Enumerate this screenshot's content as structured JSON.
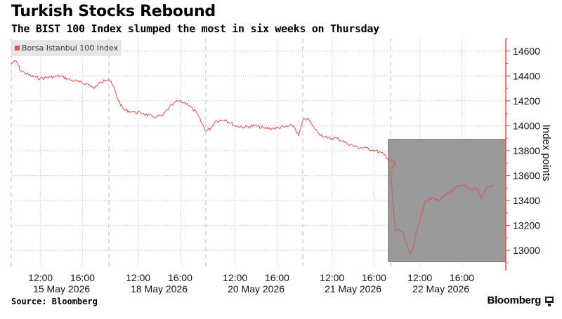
{
  "header": {
    "title": "Turkish Stocks Rebound",
    "subtitle": "The BIST 100 Index slumped the most in six weeks on Thursday"
  },
  "footer": {
    "source": "Source: Bloomberg",
    "brand": "Bloomberg"
  },
  "colors": {
    "series": "#e0504d",
    "highlight_box": "#9a9a9a",
    "axis": "#e0504d",
    "grid": "#bdbdbd"
  },
  "chart_data": {
    "type": "line",
    "title": "Turkish Stocks Rebound",
    "subtitle": "The BIST 100 Index slumped the most in six weeks on Thursday",
    "ylabel": "Index points",
    "ylim": [
      12860,
      14700
    ],
    "y_ticks": [
      13000,
      13200,
      13400,
      13600,
      13800,
      14000,
      14200,
      14400,
      14600
    ],
    "y_tick_labels": [
      "13000",
      "13200",
      "13400",
      "13600",
      "13800",
      "14000",
      "14200",
      "14400",
      "14600"
    ],
    "y_axis_side": "right",
    "grid": true,
    "legend_placement": "top-left",
    "sessions": [
      "15 May 2026",
      "18 May 2026",
      "20 May 2026",
      "21 May 2026",
      "22 May 2026"
    ],
    "x_time_labels": [
      "12:00",
      "16:00",
      "12:00",
      "16:00",
      "12:00",
      "16:00",
      "12:00",
      "16:00",
      "12:00",
      "16:00"
    ],
    "x_date_labels": [
      "15 May 2026",
      "18 May 2026",
      "20 May 2026",
      "21 May 2026",
      "22 May 2026"
    ],
    "series": [
      {
        "name": "Borsa Istanbul 100 Index",
        "points": [
          [
            0.0,
            14500
          ],
          [
            0.05,
            14520
          ],
          [
            0.1,
            14440
          ],
          [
            0.2,
            14400
          ],
          [
            0.3,
            14380
          ],
          [
            0.4,
            14390
          ],
          [
            0.5,
            14400
          ],
          [
            0.6,
            14370
          ],
          [
            0.7,
            14350
          ],
          [
            0.8,
            14330
          ],
          [
            0.85,
            14300
          ],
          [
            0.9,
            14340
          ],
          [
            0.95,
            14370
          ],
          [
            1.0,
            14370
          ],
          [
            1.05,
            14310
          ],
          [
            1.1,
            14200
          ],
          [
            1.15,
            14130
          ],
          [
            1.25,
            14110
          ],
          [
            1.35,
            14100
          ],
          [
            1.45,
            14070
          ],
          [
            1.55,
            14080
          ],
          [
            1.6,
            14130
          ],
          [
            1.7,
            14200
          ],
          [
            1.8,
            14180
          ],
          [
            1.9,
            14100
          ],
          [
            2.0,
            13960
          ],
          [
            2.05,
            13980
          ],
          [
            2.1,
            14040
          ],
          [
            2.2,
            14050
          ],
          [
            2.3,
            14000
          ],
          [
            2.4,
            13990
          ],
          [
            2.5,
            14000
          ],
          [
            2.6,
            13980
          ],
          [
            2.7,
            13980
          ],
          [
            2.8,
            13990
          ],
          [
            2.9,
            14000
          ],
          [
            2.95,
            13920
          ],
          [
            3.0,
            14040
          ],
          [
            3.05,
            14060
          ],
          [
            3.1,
            14000
          ],
          [
            3.15,
            13950
          ],
          [
            3.25,
            13900
          ],
          [
            3.35,
            13900
          ],
          [
            3.45,
            13860
          ],
          [
            3.55,
            13830
          ],
          [
            3.65,
            13820
          ],
          [
            3.75,
            13800
          ],
          [
            3.85,
            13760
          ],
          [
            3.9,
            13720
          ],
          [
            3.95,
            13700
          ],
          [
            4.0,
            13640
          ],
          [
            4.02,
            13420
          ],
          [
            4.05,
            13160
          ],
          [
            4.12,
            13150
          ],
          [
            4.16,
            13050
          ],
          [
            4.2,
            12970
          ],
          [
            4.24,
            13050
          ],
          [
            4.28,
            13200
          ],
          [
            4.35,
            13380
          ],
          [
            4.42,
            13420
          ],
          [
            4.5,
            13400
          ],
          [
            4.58,
            13450
          ],
          [
            4.66,
            13500
          ],
          [
            4.75,
            13520
          ],
          [
            4.82,
            13490
          ],
          [
            4.88,
            13500
          ],
          [
            4.93,
            13420
          ],
          [
            4.98,
            13500
          ],
          [
            5.05,
            13520
          ]
        ]
      }
    ],
    "highlight_region": {
      "x_from_session": 4.0,
      "x_to_session": 5.18,
      "y_from": 12910,
      "y_to": 13890
    }
  }
}
